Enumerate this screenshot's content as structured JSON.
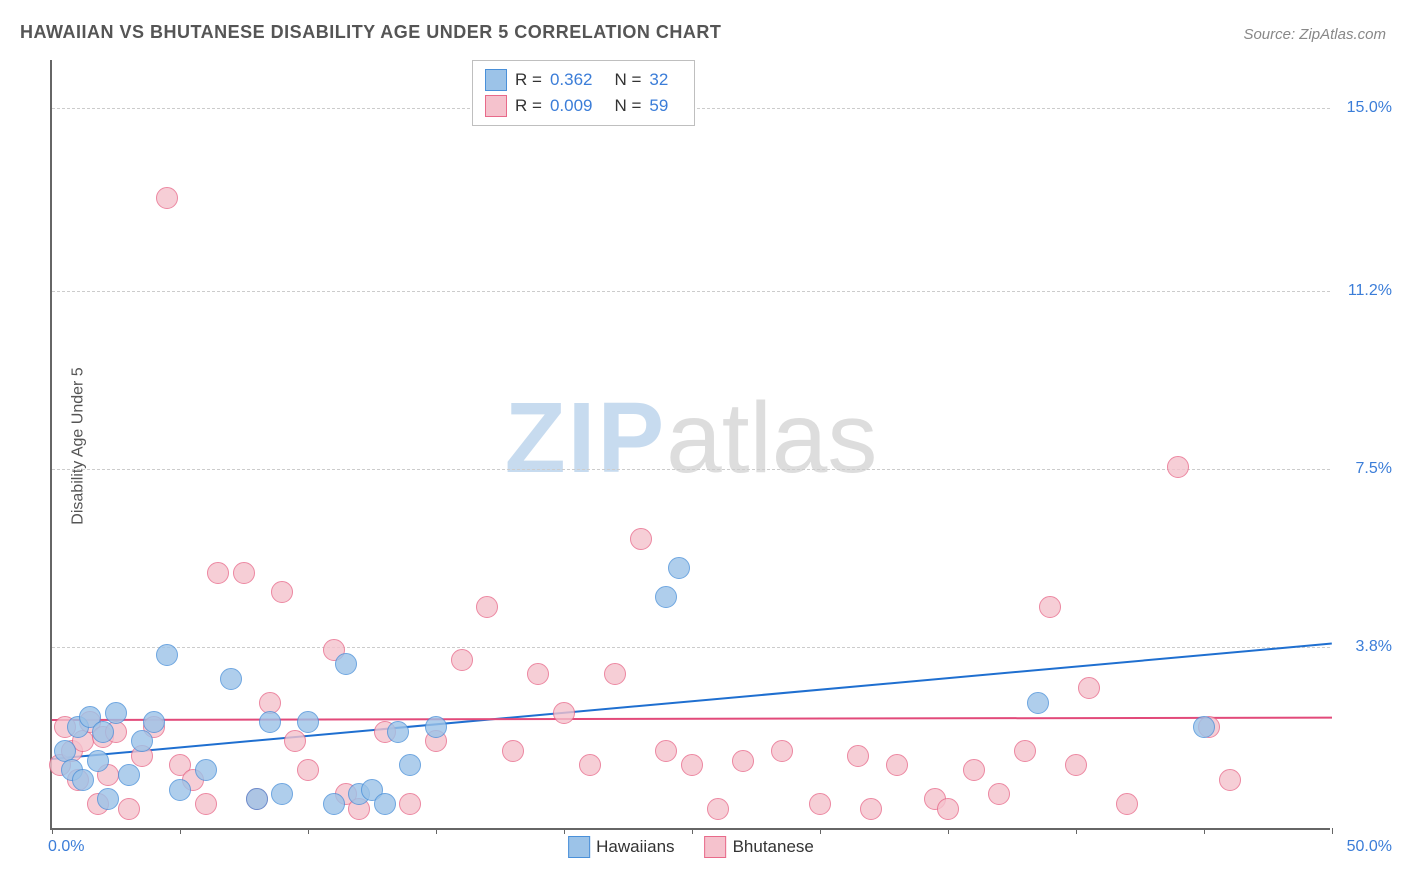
{
  "title": "HAWAIIAN VS BHUTANESE DISABILITY AGE UNDER 5 CORRELATION CHART",
  "source": "Source: ZipAtlas.com",
  "ylabel": "Disability Age Under 5",
  "watermark": {
    "zip": "ZIP",
    "atlas": "atlas"
  },
  "chart": {
    "type": "scatter",
    "xlim": [
      0,
      50
    ],
    "ylim": [
      0,
      16
    ],
    "x_tick_labels": {
      "start": "0.0%",
      "end": "50.0%"
    },
    "y_grid": [
      {
        "value": 3.8,
        "label": "3.8%"
      },
      {
        "value": 7.5,
        "label": "7.5%"
      },
      {
        "value": 11.2,
        "label": "11.2%"
      },
      {
        "value": 15.0,
        "label": "15.0%"
      }
    ],
    "x_tick_positions": [
      0,
      5,
      10,
      15,
      20,
      25,
      30,
      35,
      40,
      45,
      50
    ],
    "marker_radius": 11,
    "marker_opacity": 0.35,
    "background_color": "#ffffff",
    "grid_color": "#cccccc"
  },
  "series": [
    {
      "name": "Hawaiians",
      "fill": "#9cc3e8",
      "stroke": "#4a90d9",
      "regression": {
        "y_at_x0": 1.5,
        "y_at_xmax": 3.9,
        "color": "#1f6fd0",
        "width": 2
      },
      "stats": {
        "R": "0.362",
        "N": "32"
      },
      "points": [
        [
          0.5,
          1.6
        ],
        [
          0.8,
          1.2
        ],
        [
          1.0,
          2.1
        ],
        [
          1.2,
          1.0
        ],
        [
          1.5,
          2.3
        ],
        [
          1.8,
          1.4
        ],
        [
          2.0,
          2.0
        ],
        [
          2.2,
          0.6
        ],
        [
          2.5,
          2.4
        ],
        [
          3.0,
          1.1
        ],
        [
          3.5,
          1.8
        ],
        [
          4.0,
          2.2
        ],
        [
          4.5,
          3.6
        ],
        [
          5.0,
          0.8
        ],
        [
          6.0,
          1.2
        ],
        [
          7.0,
          3.1
        ],
        [
          8.0,
          0.6
        ],
        [
          8.5,
          2.2
        ],
        [
          9.0,
          0.7
        ],
        [
          10.0,
          2.2
        ],
        [
          11.0,
          0.5
        ],
        [
          11.5,
          3.4
        ],
        [
          12.0,
          0.7
        ],
        [
          12.5,
          0.8
        ],
        [
          13.0,
          0.5
        ],
        [
          13.5,
          2.0
        ],
        [
          14.0,
          1.3
        ],
        [
          15.0,
          2.1
        ],
        [
          24.0,
          4.8
        ],
        [
          24.5,
          5.4
        ],
        [
          38.5,
          2.6
        ],
        [
          45.0,
          2.1
        ]
      ]
    },
    {
      "name": "Bhutanese",
      "fill": "#f5c2cd",
      "stroke": "#e86a8a",
      "regression": {
        "y_at_x0": 2.3,
        "y_at_xmax": 2.35,
        "color": "#e24a7a",
        "width": 2
      },
      "stats": {
        "R": "0.009",
        "N": "59"
      },
      "points": [
        [
          0.3,
          1.3
        ],
        [
          0.5,
          2.1
        ],
        [
          0.8,
          1.6
        ],
        [
          1.0,
          1.0
        ],
        [
          1.2,
          1.8
        ],
        [
          1.5,
          2.2
        ],
        [
          1.8,
          0.5
        ],
        [
          2.0,
          1.9
        ],
        [
          2.2,
          1.1
        ],
        [
          2.5,
          2.0
        ],
        [
          3.0,
          0.4
        ],
        [
          3.5,
          1.5
        ],
        [
          4.0,
          2.1
        ],
        [
          4.5,
          13.1
        ],
        [
          5.0,
          1.3
        ],
        [
          5.5,
          1.0
        ],
        [
          6.0,
          0.5
        ],
        [
          6.5,
          5.3
        ],
        [
          7.5,
          5.3
        ],
        [
          8.0,
          0.6
        ],
        [
          8.5,
          2.6
        ],
        [
          9.0,
          4.9
        ],
        [
          9.5,
          1.8
        ],
        [
          10.0,
          1.2
        ],
        [
          11.0,
          3.7
        ],
        [
          11.5,
          0.7
        ],
        [
          12.0,
          0.4
        ],
        [
          13.0,
          2.0
        ],
        [
          14.0,
          0.5
        ],
        [
          15.0,
          1.8
        ],
        [
          16.0,
          3.5
        ],
        [
          17.0,
          4.6
        ],
        [
          18.0,
          1.6
        ],
        [
          19.0,
          3.2
        ],
        [
          20.0,
          2.4
        ],
        [
          21.0,
          1.3
        ],
        [
          22.0,
          3.2
        ],
        [
          23.0,
          6.0
        ],
        [
          24.0,
          1.6
        ],
        [
          25.0,
          1.3
        ],
        [
          26.0,
          0.4
        ],
        [
          27.0,
          1.4
        ],
        [
          28.5,
          1.6
        ],
        [
          30.0,
          0.5
        ],
        [
          31.5,
          1.5
        ],
        [
          32.0,
          0.4
        ],
        [
          33.0,
          1.3
        ],
        [
          34.5,
          0.6
        ],
        [
          35.0,
          0.4
        ],
        [
          36.0,
          1.2
        ],
        [
          37.0,
          0.7
        ],
        [
          38.0,
          1.6
        ],
        [
          39.0,
          4.6
        ],
        [
          40.0,
          1.3
        ],
        [
          40.5,
          2.9
        ],
        [
          42.0,
          0.5
        ],
        [
          44.0,
          7.5
        ],
        [
          45.2,
          2.1
        ],
        [
          46.0,
          1.0
        ]
      ]
    }
  ],
  "stats_legend_labels": {
    "R": "R =",
    "N": "N ="
  },
  "bottom_legend": [
    {
      "label": "Hawaiians",
      "fill": "#9cc3e8",
      "stroke": "#4a90d9"
    },
    {
      "label": "Bhutanese",
      "fill": "#f5c2cd",
      "stroke": "#e86a8a"
    }
  ]
}
